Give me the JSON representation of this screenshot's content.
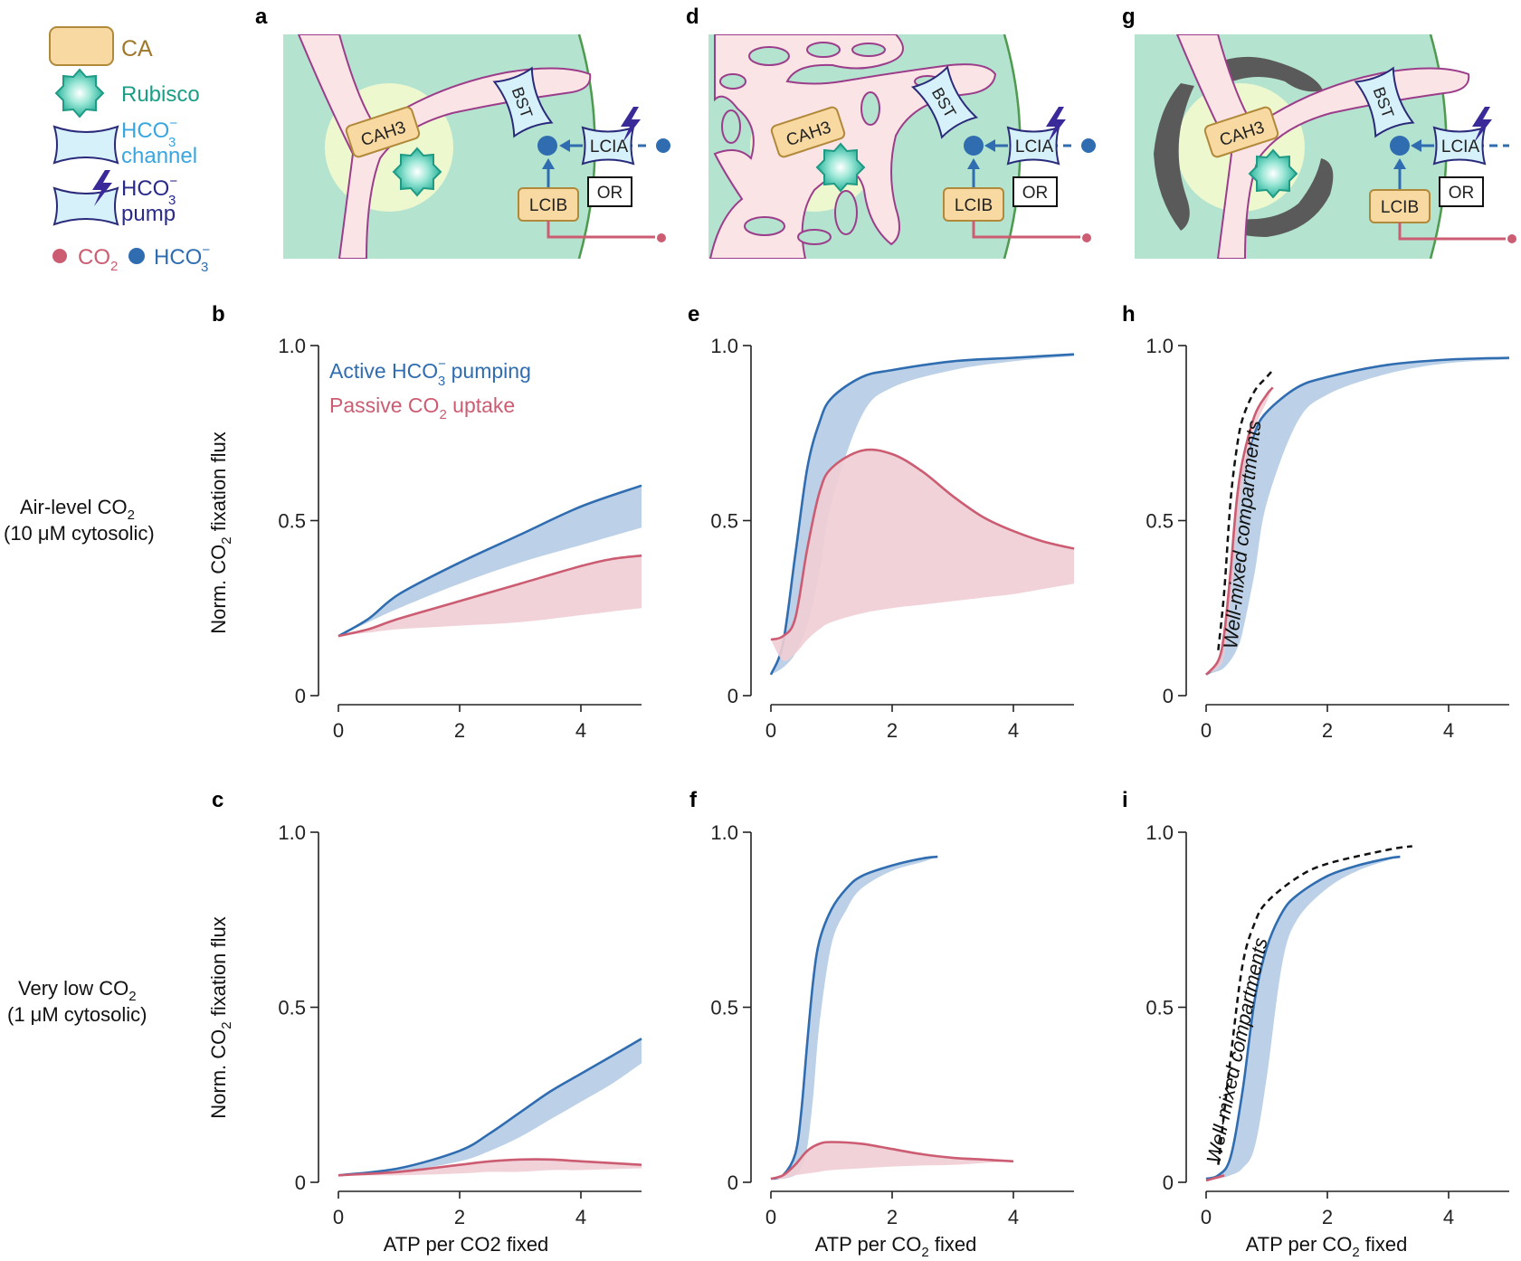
{
  "legend": {
    "ca": "CA",
    "rubisco": "Rubisco",
    "channel_1": "HCO",
    "channel_1_sub": "3",
    "channel_1_sup": "−",
    "channel_2": "channel",
    "pump_1": "HCO",
    "pump_1_sub": "3",
    "pump_1_sup": "−",
    "pump_2": "pump",
    "co2": "CO",
    "co2_sub": "2",
    "hco3": "HCO",
    "hco3_sub": "3",
    "hco3_sup": "−"
  },
  "schematic": {
    "cah3": "CAH3",
    "bst": "BST",
    "lcia": "LCIA",
    "lcib": "LCIB",
    "or": "OR"
  },
  "panel_labels": [
    "a",
    "b",
    "c",
    "d",
    "e",
    "f",
    "g",
    "h",
    "i"
  ],
  "conditions": {
    "air_1": "Air-level CO",
    "air_1_sub": "2",
    "air_2": "(10 μM cytosolic)",
    "low_1": "Very low CO",
    "low_1_sub": "2",
    "low_2": "(1 μM cytosolic)"
  },
  "axis": {
    "ylabel_pre": "Norm. CO",
    "ylabel_sub": "2",
    "ylabel_post": " fixation flux",
    "xlabel_pre": "ATP per CO",
    "xlabel_sub": "2",
    "xlabel_post": " fixed",
    "xlabel_plain": "ATP per CO2 fixed",
    "yticks": [
      "0",
      "0.5",
      "1.0"
    ],
    "xticks": [
      "0",
      "2",
      "4"
    ]
  },
  "chart_legend": {
    "active_pre": "Active HCO",
    "active_sub": "3",
    "active_sup": "−",
    "active_post": " pumping",
    "passive_pre": "Passive CO",
    "passive_sub": "2",
    "passive_post": " uptake"
  },
  "well_mixed": "Well-mixed compartments",
  "colors": {
    "blue": "#2f6db0",
    "blue_fill": "#b8cfe6",
    "red": "#cc5c72",
    "red_fill": "#f0cdd4",
    "stroma": "#b4e3cf",
    "tubule": "#fbe4e6",
    "tubule_edge": "#9b3d8a",
    "pyrenoid": "#eef8cf",
    "ca_fill": "#f9d9a2",
    "ca_edge": "#b0893a",
    "channel_fill": "#d6f1fa",
    "channel_edge": "#2a2a7a",
    "rubisco": "#29b39a",
    "sheath": "#5a5a5a"
  },
  "chart_data": [
    {
      "panel": "b",
      "type": "area",
      "xlim": [
        0,
        5
      ],
      "ylim": [
        0,
        1
      ],
      "series": [
        {
          "name": "Active HCO3- pumping",
          "x": [
            0,
            0.5,
            1,
            2,
            3,
            4,
            5
          ],
          "upper": [
            0.17,
            0.22,
            0.29,
            0.38,
            0.46,
            0.54,
            0.6
          ],
          "lower": [
            0.17,
            0.21,
            0.25,
            0.32,
            0.38,
            0.43,
            0.48
          ]
        },
        {
          "name": "Passive CO2 uptake",
          "x": [
            0,
            0.5,
            1,
            2,
            3,
            4,
            4.5,
            5
          ],
          "upper": [
            0.17,
            0.19,
            0.22,
            0.27,
            0.32,
            0.37,
            0.39,
            0.4
          ],
          "lower": [
            0.17,
            0.18,
            0.19,
            0.2,
            0.21,
            0.23,
            0.24,
            0.25
          ]
        }
      ]
    },
    {
      "panel": "c",
      "type": "area",
      "xlim": [
        0,
        5
      ],
      "ylim": [
        0,
        1
      ],
      "series": [
        {
          "name": "Active HCO3- pumping",
          "x": [
            0,
            1,
            2,
            2.5,
            3,
            3.5,
            4,
            4.5,
            5
          ],
          "upper": [
            0.02,
            0.04,
            0.09,
            0.14,
            0.2,
            0.26,
            0.31,
            0.36,
            0.41
          ],
          "lower": [
            0.02,
            0.03,
            0.06,
            0.09,
            0.13,
            0.18,
            0.23,
            0.28,
            0.34
          ]
        },
        {
          "name": "Passive CO2 uptake",
          "x": [
            0,
            1,
            2,
            2.5,
            3,
            3.5,
            4,
            5
          ],
          "upper": [
            0.02,
            0.03,
            0.05,
            0.06,
            0.065,
            0.065,
            0.06,
            0.05
          ],
          "lower": [
            0.02,
            0.02,
            0.025,
            0.03,
            0.03,
            0.035,
            0.035,
            0.04
          ]
        }
      ]
    },
    {
      "panel": "e",
      "type": "area",
      "xlim": [
        0,
        5
      ],
      "ylim": [
        0,
        1
      ],
      "series": [
        {
          "name": "Active HCO3- pumping",
          "x": [
            0,
            0.2,
            0.4,
            0.6,
            0.8,
            1,
            1.5,
            2,
            3,
            4,
            5
          ],
          "upper": [
            0.06,
            0.15,
            0.4,
            0.65,
            0.78,
            0.85,
            0.91,
            0.93,
            0.955,
            0.965,
            0.975
          ],
          "lower": [
            0.06,
            0.08,
            0.12,
            0.2,
            0.35,
            0.55,
            0.8,
            0.88,
            0.93,
            0.955,
            0.97
          ]
        },
        {
          "name": "Passive CO2 uptake",
          "x": [
            0,
            0.2,
            0.4,
            0.6,
            0.8,
            1,
            1.5,
            2,
            2.5,
            3,
            3.5,
            4,
            4.5,
            5
          ],
          "upper": [
            0.16,
            0.17,
            0.22,
            0.42,
            0.58,
            0.65,
            0.7,
            0.69,
            0.64,
            0.57,
            0.51,
            0.47,
            0.44,
            0.42
          ],
          "lower": [
            0.16,
            0.1,
            0.12,
            0.16,
            0.19,
            0.21,
            0.235,
            0.25,
            0.26,
            0.27,
            0.28,
            0.29,
            0.305,
            0.32
          ]
        }
      ]
    },
    {
      "panel": "f",
      "type": "area",
      "xlim": [
        0,
        5
      ],
      "ylim": [
        0,
        1
      ],
      "series": [
        {
          "name": "Active HCO3- pumping",
          "x": [
            0,
            0.2,
            0.4,
            0.5,
            0.6,
            0.7,
            0.8,
            1,
            1.25,
            1.5,
            2,
            2.5,
            2.75
          ],
          "upper": [
            0.01,
            0.02,
            0.08,
            0.2,
            0.4,
            0.58,
            0.69,
            0.78,
            0.84,
            0.875,
            0.905,
            0.925,
            0.93
          ],
          "lower": [
            0.01,
            0.01,
            0.02,
            0.04,
            0.1,
            0.25,
            0.45,
            0.68,
            0.78,
            0.84,
            0.89,
            0.915,
            0.93
          ]
        },
        {
          "name": "Passive CO2 uptake",
          "x": [
            0,
            0.2,
            0.4,
            0.6,
            0.8,
            1,
            1.5,
            2,
            2.5,
            3,
            3.5,
            4
          ],
          "upper": [
            0.01,
            0.02,
            0.05,
            0.09,
            0.11,
            0.115,
            0.11,
            0.095,
            0.08,
            0.07,
            0.065,
            0.06
          ],
          "lower": [
            0.01,
            0.01,
            0.02,
            0.025,
            0.03,
            0.035,
            0.04,
            0.045,
            0.048,
            0.05,
            0.055,
            0.06
          ]
        }
      ]
    },
    {
      "panel": "h",
      "type": "area",
      "xlim": [
        0,
        5
      ],
      "ylim": [
        0,
        1
      ],
      "series": [
        {
          "name": "Active HCO3- pumping",
          "x": [
            0,
            0.2,
            0.3,
            0.4,
            0.5,
            0.6,
            0.8,
            1,
            1.5,
            2,
            3,
            4,
            5
          ],
          "upper": [
            0.06,
            0.09,
            0.15,
            0.3,
            0.5,
            0.63,
            0.75,
            0.81,
            0.88,
            0.91,
            0.945,
            0.96,
            0.965
          ],
          "lower": [
            0.06,
            0.07,
            0.08,
            0.1,
            0.13,
            0.18,
            0.35,
            0.55,
            0.78,
            0.86,
            0.92,
            0.95,
            0.96
          ]
        },
        {
          "name": "Passive CO2 uptake",
          "x": [
            0,
            0.2,
            0.3,
            0.4,
            0.5,
            0.6,
            0.8,
            1,
            1.1
          ],
          "upper": [
            0.06,
            0.1,
            0.18,
            0.35,
            0.55,
            0.67,
            0.8,
            0.86,
            0.88
          ],
          "lower": [
            0.06,
            0.08,
            0.12,
            0.25,
            0.45,
            0.6,
            0.76,
            0.84,
            0.88
          ]
        },
        {
          "name": "Well-mixed compartments",
          "x": [
            0.2,
            0.3,
            0.4,
            0.5,
            0.6,
            0.8,
            1,
            1.1
          ],
          "values": [
            0.13,
            0.3,
            0.55,
            0.7,
            0.79,
            0.87,
            0.91,
            0.93
          ]
        }
      ]
    },
    {
      "panel": "i",
      "type": "area",
      "xlim": [
        0,
        5
      ],
      "ylim": [
        0,
        1
      ],
      "series": [
        {
          "name": "Active HCO3- pumping",
          "x": [
            0,
            0.2,
            0.4,
            0.6,
            0.8,
            1,
            1.25,
            1.5,
            2,
            2.5,
            3,
            3.2
          ],
          "upper": [
            0.01,
            0.02,
            0.07,
            0.26,
            0.52,
            0.67,
            0.77,
            0.82,
            0.875,
            0.905,
            0.925,
            0.93
          ],
          "lower": [
            0.01,
            0.01,
            0.02,
            0.04,
            0.1,
            0.3,
            0.62,
            0.75,
            0.84,
            0.89,
            0.92,
            0.93
          ]
        },
        {
          "name": "Passive CO2 uptake",
          "x": [
            0,
            0.1,
            0.2,
            0.3
          ],
          "upper": [
            0.005,
            0.01,
            0.015,
            0.02
          ],
          "lower": [
            0.005,
            0.007,
            0.01,
            0.015
          ]
        },
        {
          "name": "Well-mixed compartments",
          "x": [
            0.2,
            0.4,
            0.6,
            0.8,
            1,
            1.5,
            2,
            3,
            3.4
          ],
          "values": [
            0.05,
            0.35,
            0.62,
            0.74,
            0.8,
            0.87,
            0.91,
            0.95,
            0.96
          ]
        }
      ]
    }
  ]
}
